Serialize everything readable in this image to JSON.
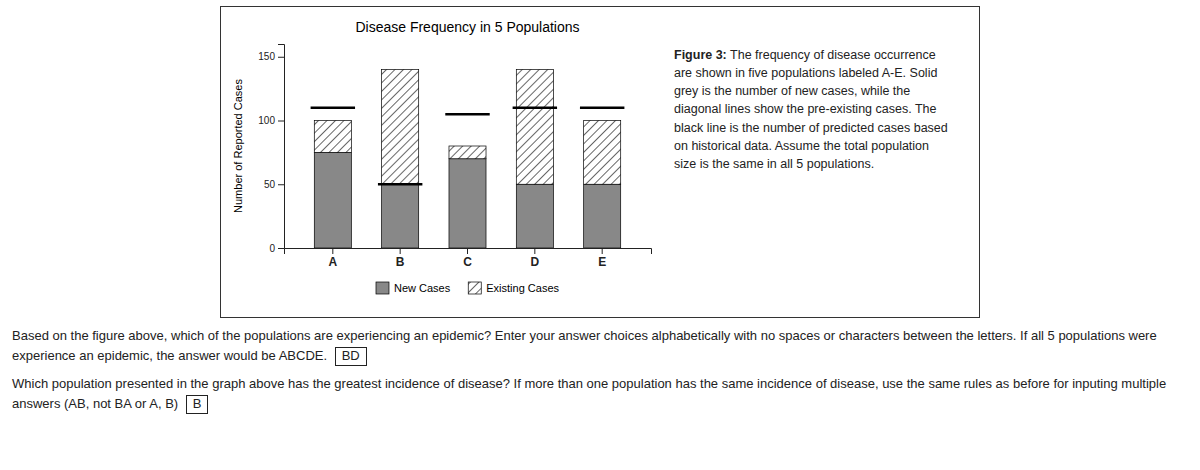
{
  "chart_data": {
    "type": "bar",
    "stacked": true,
    "title": "Disease Frequency in 5 Populations",
    "ylabel": "Number of Reported Cases",
    "categories": [
      "A",
      "B",
      "C",
      "D",
      "E"
    ],
    "series": [
      {
        "name": "New Cases",
        "color": "#888888",
        "values": [
          75,
          50,
          70,
          50,
          50
        ]
      },
      {
        "name": "Existing Cases",
        "color": "#ffffff",
        "values": [
          25,
          90,
          10,
          90,
          50
        ]
      },
      {
        "type": "scatter",
        "marker": "hline",
        "color": "black",
        "values": [
          110,
          50,
          105,
          110,
          110
        ]
      }
    ],
    "ylim": [
      0,
      160
    ],
    "yticks": [
      0,
      50,
      100,
      150
    ],
    "grid": false,
    "legend": "bottom",
    "caption": {
      "label": "Figure 3:",
      "text": "The frequency of disease occurrence are shown in five populations labeled A-E. Solid grey is the number of new cases, while the diagonal lines show the pre-existing cases. The black line is the number of predicted cases based on historical data. Assume the total population size is the same in all 5 populations."
    }
  },
  "questions": [
    {
      "text": "Based on the figure above, which of the populations are experiencing an epidemic? Enter your answer choices alphabetically with no spaces or characters between the letters. If all 5 populations were experience an epidemic, the answer would be ABCDE.",
      "answer": "BD"
    },
    {
      "text": "Which population presented in the graph above has the greatest incidence of disease? If more than one population has the same incidence of disease, use the same rules as before for inputing multiple answers (AB, not BA or A, B)",
      "answer": "B"
    }
  ]
}
